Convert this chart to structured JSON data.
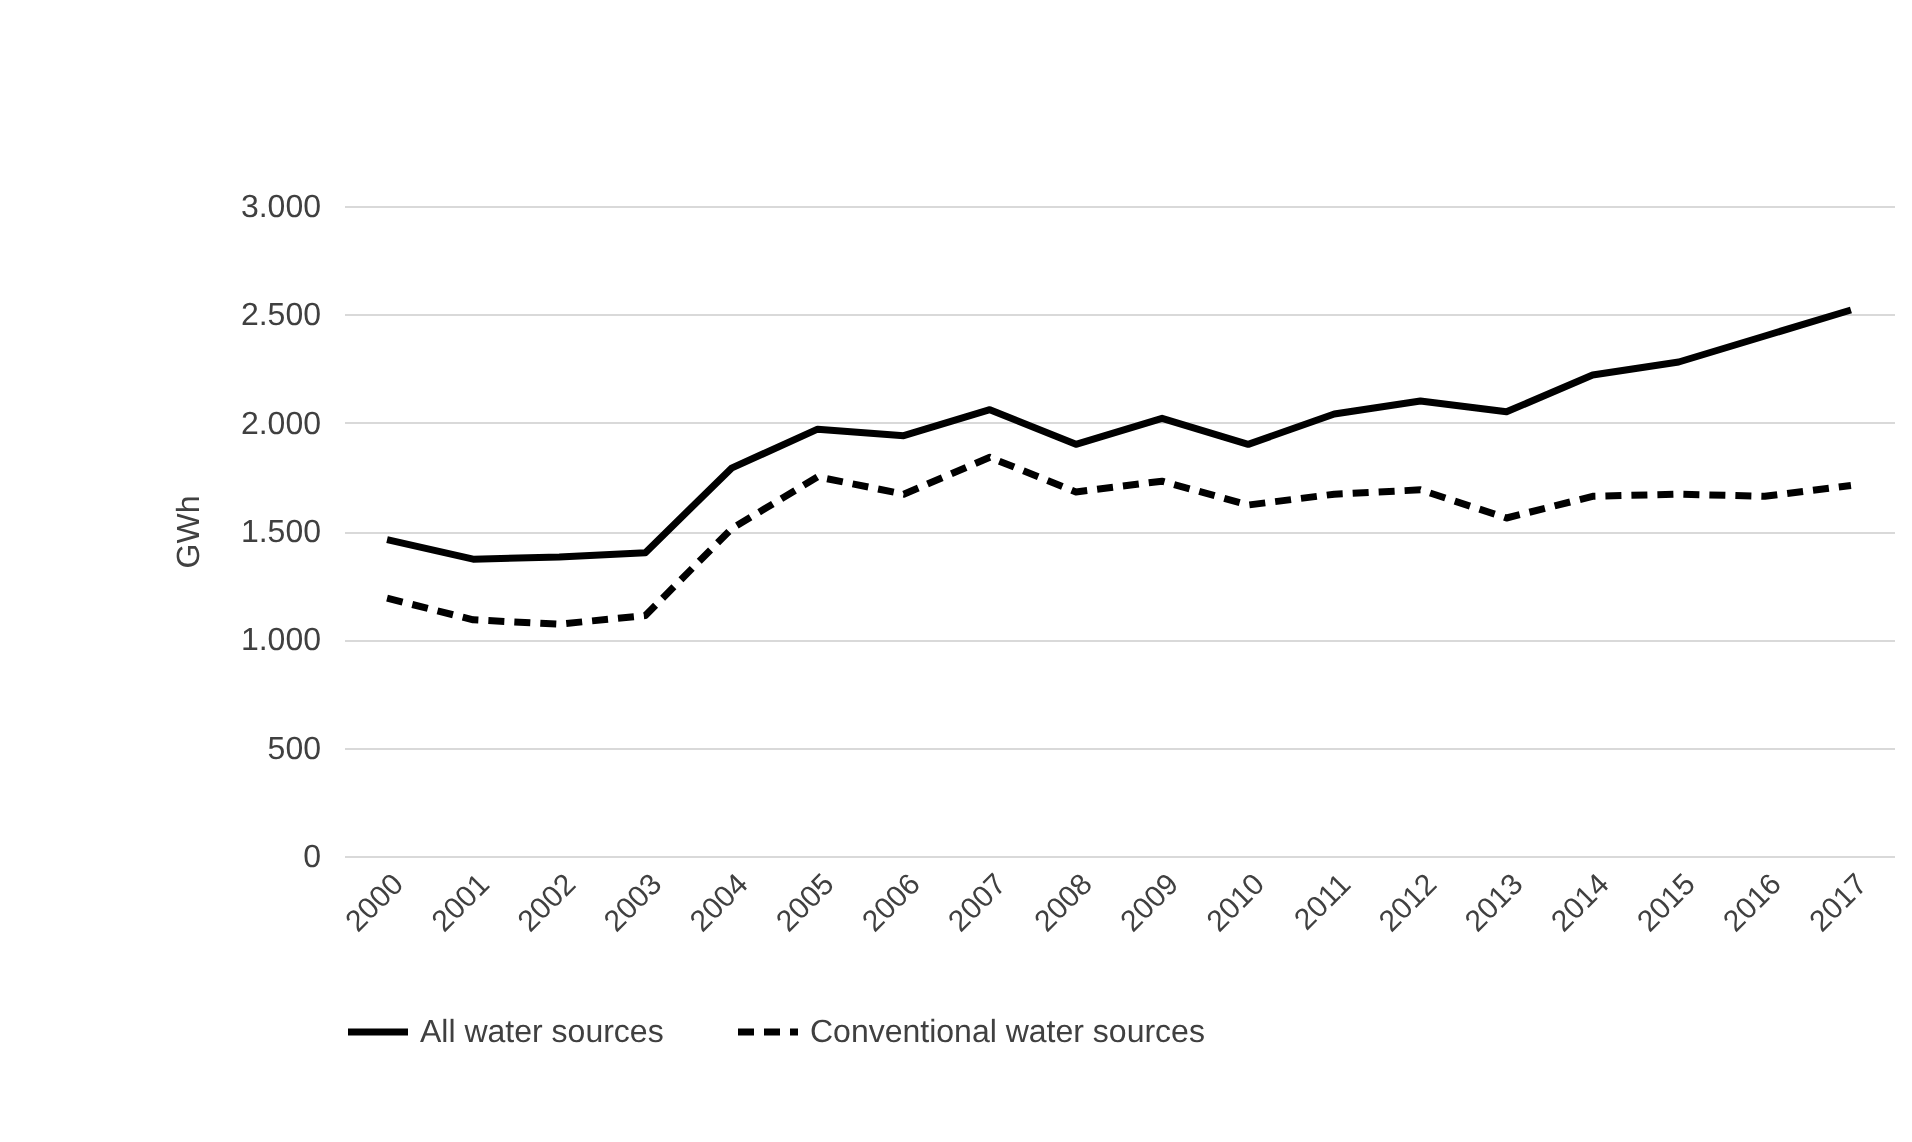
{
  "chart_data": {
    "type": "line",
    "ylabel": "GWh",
    "categories": [
      "2000",
      "2001",
      "2002",
      "2003",
      "2004",
      "2005",
      "2006",
      "2007",
      "2008",
      "2009",
      "2010",
      "2011",
      "2012",
      "2013",
      "2014",
      "2015",
      "2016",
      "2017"
    ],
    "series": [
      {
        "name": "All water sources",
        "color": "#000000",
        "line_style": "solid",
        "values": [
          1460,
          1370,
          1380,
          1400,
          1790,
          1970,
          1940,
          2060,
          1900,
          2020,
          1900,
          2040,
          2100,
          2050,
          2220,
          2280,
          2400,
          2520
        ]
      },
      {
        "name": "Conventional water sources",
        "color": "#000000",
        "line_style": "dashed",
        "values": [
          1190,
          1090,
          1070,
          1110,
          1510,
          1750,
          1670,
          1840,
          1680,
          1730,
          1620,
          1670,
          1690,
          1560,
          1660,
          1670,
          1660,
          1710
        ]
      }
    ],
    "ylim": [
      0,
      3000
    ],
    "yticks": [
      0,
      500,
      {
        "value": 1000,
        "label": "1.000"
      },
      {
        "value": 1500,
        "label": "1.500"
      },
      {
        "value": 2000,
        "label": "2.000"
      },
      {
        "value": 2500,
        "label": "2.500"
      },
      {
        "value": 3000,
        "label": "3.000"
      }
    ],
    "grid": "y",
    "legend": "bottom",
    "marker": "none"
  }
}
